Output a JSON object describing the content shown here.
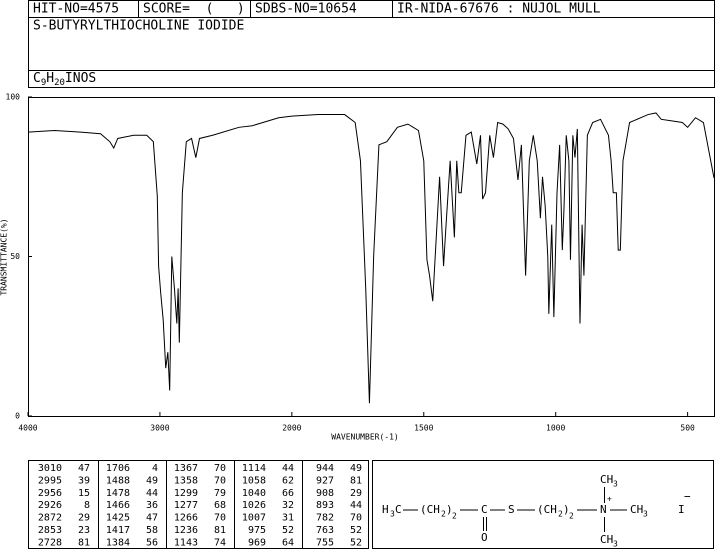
{
  "header": {
    "hit_no": "HIT-NO=4575",
    "score": "SCORE=  (   )",
    "sdbs_no": "SDBS-NO=10654",
    "ir": "IR-NIDA-67676 : NUJOL MULL",
    "name": "S-BUTYRYLTHIOCHOLINE IODIDE",
    "formula": [
      "C",
      "9",
      "H",
      "20",
      "INOS"
    ]
  },
  "chart_data": {
    "type": "line",
    "xlabel": "WAVENUMBER(-1)",
    "ylabel": "TRANSMITTANCE(%)",
    "xlim": [
      4000,
      400
    ],
    "xbreak": 2000,
    "xticks": [
      4000,
      3000,
      2000,
      1500,
      1000,
      500
    ],
    "ylim": [
      0,
      100
    ],
    "yticks": [
      0,
      50,
      100
    ],
    "color": "#000000",
    "x": [
      4000,
      3800,
      3600,
      3450,
      3380,
      3350,
      3320,
      3200,
      3100,
      3050,
      3020,
      3010,
      2995,
      2975,
      2956,
      2940,
      2926,
      2910,
      2890,
      2872,
      2862,
      2853,
      2830,
      2800,
      2760,
      2728,
      2700,
      2600,
      2400,
      2300,
      2100,
      2000,
      1900,
      1800,
      1760,
      1740,
      1720,
      1706,
      1690,
      1670,
      1640,
      1600,
      1560,
      1520,
      1500,
      1488,
      1478,
      1466,
      1440,
      1425,
      1417,
      1400,
      1384,
      1375,
      1367,
      1358,
      1340,
      1320,
      1299,
      1285,
      1277,
      1266,
      1250,
      1236,
      1220,
      1200,
      1180,
      1160,
      1143,
      1130,
      1114,
      1100,
      1085,
      1070,
      1058,
      1050,
      1040,
      1030,
      1026,
      1015,
      1007,
      995,
      985,
      975,
      969,
      960,
      950,
      944,
      935,
      927,
      918,
      908,
      900,
      893,
      880,
      860,
      830,
      800,
      790,
      782,
      770,
      763,
      755,
      745,
      720,
      650,
      620,
      600,
      560,
      520,
      500,
      470,
      440,
      400
    ],
    "values": [
      89,
      89.5,
      89,
      88.5,
      86,
      84,
      87,
      88,
      88,
      86,
      69,
      47,
      39,
      30,
      15,
      20,
      8,
      50,
      40,
      29,
      40,
      23,
      70,
      86,
      87,
      81,
      87,
      88,
      90.5,
      91,
      93.5,
      94,
      94.5,
      94.5,
      92,
      80,
      40,
      4,
      50,
      85,
      86,
      90.5,
      91.5,
      89.5,
      80,
      49,
      44,
      36,
      75,
      47,
      58,
      80,
      56,
      80,
      70,
      70,
      88,
      89,
      79,
      88,
      68,
      70,
      88,
      81,
      92,
      91.5,
      90,
      87,
      74,
      85,
      44,
      80,
      88,
      80,
      62,
      75,
      66,
      50,
      32,
      60,
      31,
      70,
      85,
      52,
      64,
      88,
      80,
      49,
      88,
      81,
      90,
      29,
      60,
      44,
      88,
      92,
      93,
      88,
      80,
      70,
      70,
      52,
      52,
      80,
      92,
      94.5,
      95,
      93,
      92.5,
      92,
      90.5,
      93.5,
      92,
      74.6
    ]
  },
  "peaks": [
    [
      [
        3010,
        47
      ],
      [
        2995,
        39
      ],
      [
        2956,
        15
      ],
      [
        2926,
        8
      ],
      [
        2872,
        29
      ],
      [
        2853,
        23
      ],
      [
        2728,
        81
      ]
    ],
    [
      [
        1706,
        4
      ],
      [
        1488,
        49
      ],
      [
        1478,
        44
      ],
      [
        1466,
        36
      ],
      [
        1425,
        47
      ],
      [
        1417,
        58
      ],
      [
        1384,
        56
      ]
    ],
    [
      [
        1367,
        70
      ],
      [
        1358,
        70
      ],
      [
        1299,
        79
      ],
      [
        1277,
        68
      ],
      [
        1266,
        70
      ],
      [
        1236,
        81
      ],
      [
        1143,
        74
      ]
    ],
    [
      [
        1114,
        44
      ],
      [
        1058,
        62
      ],
      [
        1040,
        66
      ],
      [
        1026,
        32
      ],
      [
        1007,
        31
      ],
      [
        975,
        52
      ],
      [
        969,
        64
      ]
    ],
    [
      [
        944,
        49
      ],
      [
        927,
        81
      ],
      [
        908,
        29
      ],
      [
        893,
        44
      ],
      [
        782,
        70
      ],
      [
        763,
        52
      ],
      [
        755,
        52
      ]
    ]
  ],
  "structure": [
    "H",
    "3",
    "C",
    "(CH",
    "2",
    ")",
    "2",
    "C",
    "O",
    "S",
    "(CH",
    "2",
    ")",
    "2",
    "N",
    "+",
    "CH",
    "3",
    "CH",
    "3",
    "CH",
    "3",
    "I",
    "−"
  ]
}
